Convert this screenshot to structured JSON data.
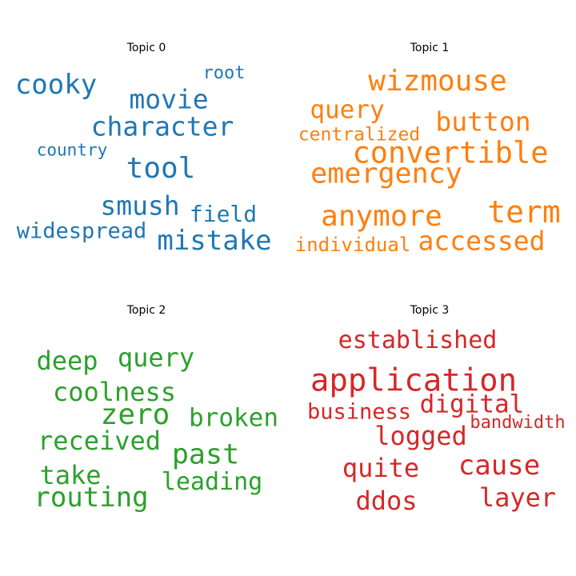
{
  "colors": [
    "#1f77b4",
    "#ff7f0e",
    "#2ca02c",
    "#d62728"
  ],
  "chart_data": [
    {
      "type": "wordcloud",
      "title": "Topic 0",
      "words": [
        "cooky",
        "root",
        "movie",
        "character",
        "country",
        "tool",
        "smush",
        "field",
        "widespread",
        "mistake"
      ]
    },
    {
      "type": "wordcloud",
      "title": "Topic 1",
      "words": [
        "wizmouse",
        "query",
        "button",
        "centralized",
        "convertible",
        "emergency",
        "anymore",
        "term",
        "individual",
        "accessed"
      ]
    },
    {
      "type": "wordcloud",
      "title": "Topic 2",
      "words": [
        "deep",
        "query",
        "coolness",
        "zero",
        "broken",
        "received",
        "past",
        "take",
        "leading",
        "routing"
      ]
    },
    {
      "type": "wordcloud",
      "title": "Topic 3",
      "words": [
        "established",
        "application",
        "business",
        "digital",
        "bandwidth",
        "logged",
        "quite",
        "cause",
        "ddos",
        "layer"
      ]
    }
  ]
}
